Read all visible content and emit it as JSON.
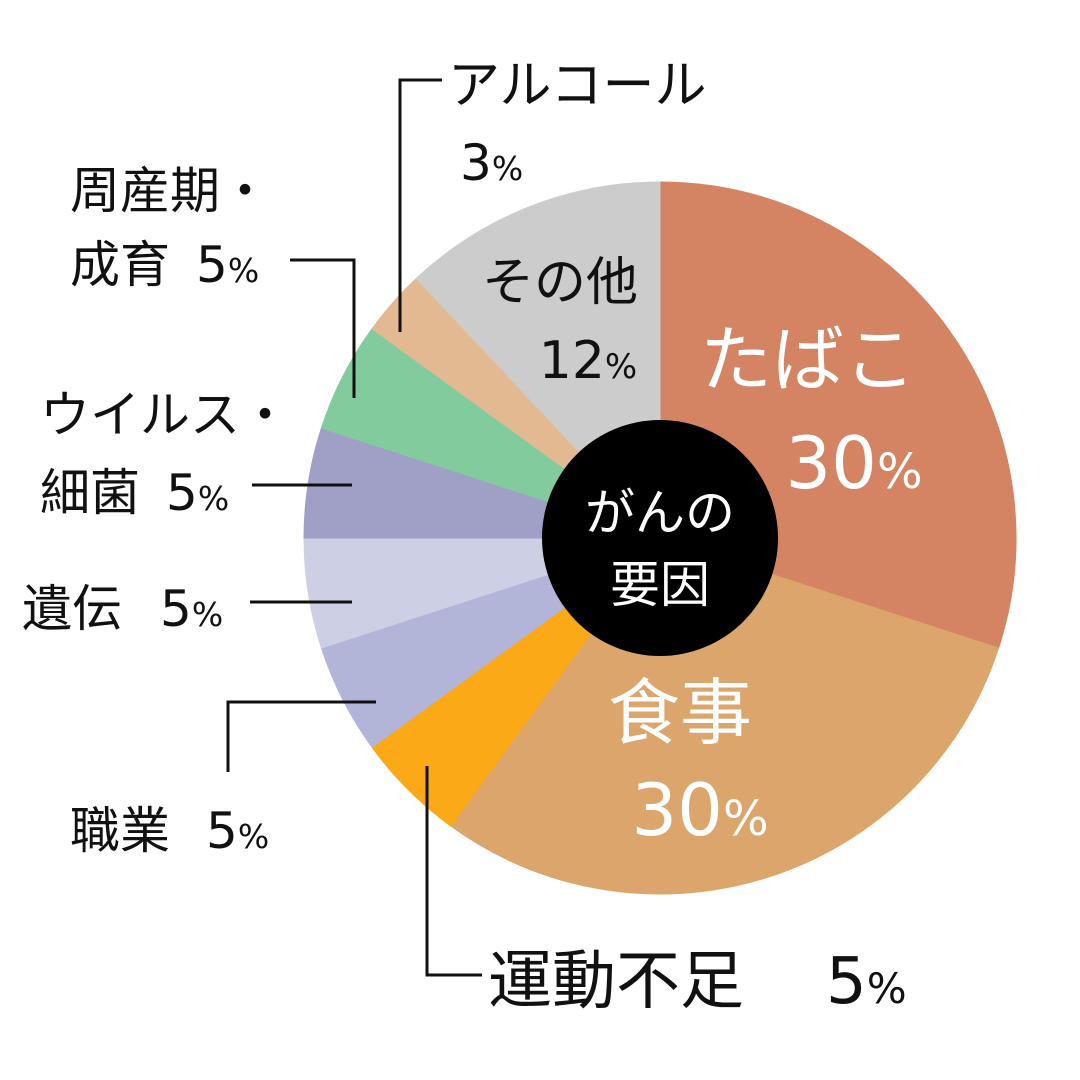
{
  "chart_data": {
    "type": "pie",
    "title": "",
    "center_label": [
      "がんの",
      "要因"
    ],
    "slices": [
      {
        "label": "たばこ",
        "value": 30,
        "color": "#d48462"
      },
      {
        "label": "食事",
        "value": 30,
        "color": "#dba56c"
      },
      {
        "label": "運動不足",
        "value": 5,
        "color": "#fba917"
      },
      {
        "label": "職業",
        "value": 5,
        "color": "#b3b5d8"
      },
      {
        "label": "遺伝",
        "value": 5,
        "color": "#cdcfe4"
      },
      {
        "label": "ウイルス・細菌",
        "value": 5,
        "color": "#a09fc6"
      },
      {
        "label": "周産期・成育",
        "value": 5,
        "color": "#82cb9c"
      },
      {
        "label": "アルコール",
        "value": 3,
        "color": "#e3b992"
      },
      {
        "label": "その他",
        "value": 12,
        "color": "#cccccc"
      }
    ],
    "texts": {
      "tobacco": "たばこ",
      "tobacco_pct": "30%",
      "diet": "食事",
      "diet_pct": "30%",
      "exercise": "運動不足",
      "exercise_pct": "5%",
      "occupation": "職業",
      "occupation_pct": "5%",
      "heredity": "遺伝",
      "heredity_pct": "5%",
      "virus_1": "ウイルス・",
      "virus_2": "細菌",
      "virus_pct": "5%",
      "perinatal_1": "周産期・",
      "perinatal_2": "成育",
      "perinatal_pct": "5%",
      "alcohol": "アルコール",
      "alcohol_pct": "3%",
      "other": "その他",
      "other_pct": "12%"
    },
    "center_color": "#000000",
    "legend": "none"
  }
}
